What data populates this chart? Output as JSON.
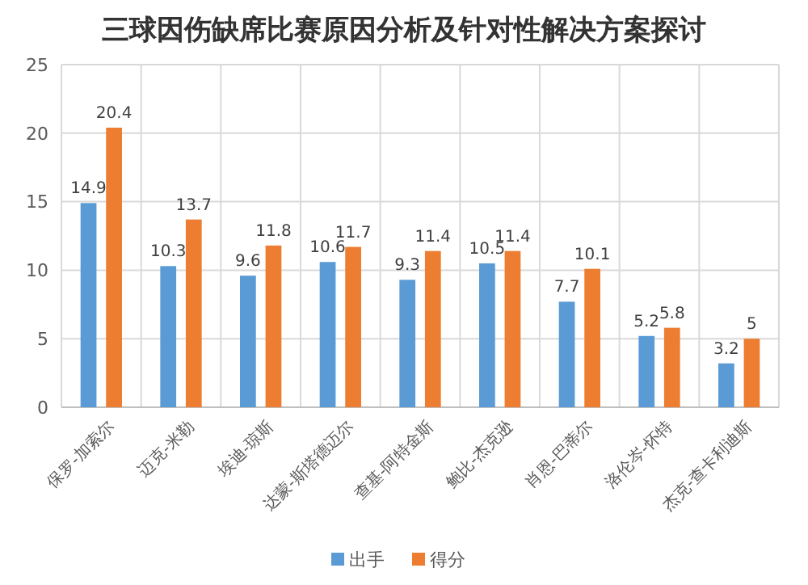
{
  "chart_data": {
    "type": "bar",
    "title": "三球因伤缺席比赛原因分析及针对性解决方案探讨",
    "categories": [
      "保罗-加索尔",
      "迈克-米勒",
      "埃迪-琼斯",
      "达蒙-斯塔德迈尔",
      "查基-阿特金斯",
      "鲍比-杰克逊",
      "肖恩-巴蒂尔",
      "洛伦岑-怀特",
      "杰克-查卡利迪斯"
    ],
    "series": [
      {
        "name": "出手",
        "color": "#5b9bd5",
        "values": [
          14.9,
          10.3,
          9.6,
          10.6,
          9.3,
          10.5,
          7.7,
          5.2,
          3.2
        ]
      },
      {
        "name": "得分",
        "color": "#ed7d31",
        "values": [
          20.4,
          13.7,
          11.8,
          11.7,
          11.4,
          11.4,
          10.1,
          5.8,
          5
        ]
      }
    ],
    "ylim": [
      0,
      25
    ],
    "yticks": [
      0,
      5,
      10,
      15,
      20,
      25
    ],
    "grid": true,
    "legend": "bottom",
    "data_labels": true
  }
}
